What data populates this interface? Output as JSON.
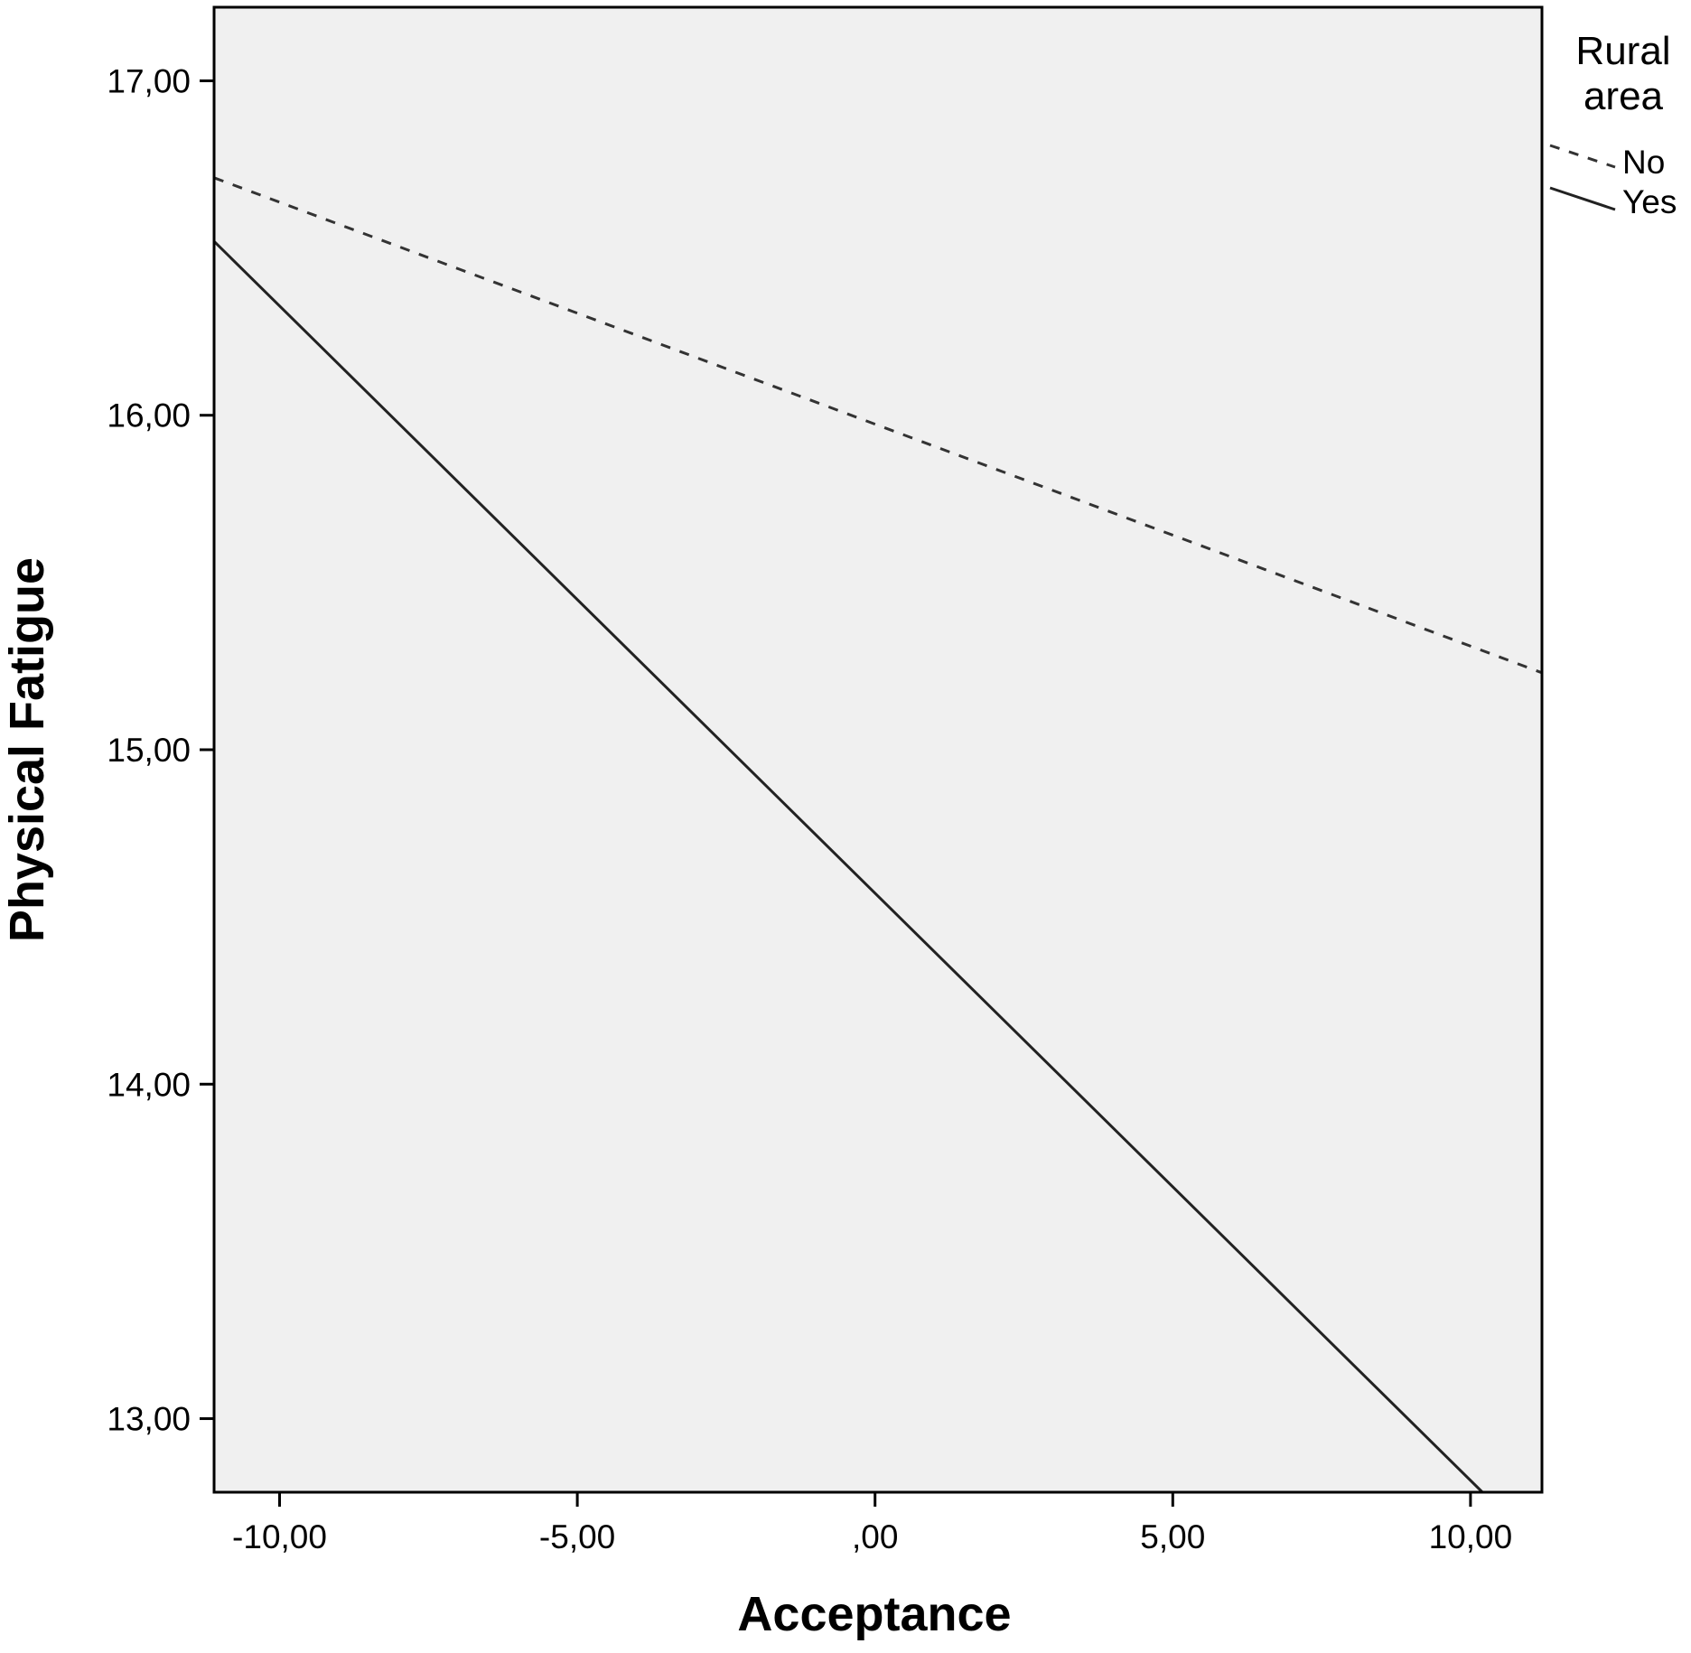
{
  "chart_data": {
    "type": "line",
    "title": "",
    "xlabel": "Acceptance",
    "ylabel": "Physical Fatigue",
    "xlim": [
      -11.1,
      11.2
    ],
    "ylim": [
      12.78,
      17.22
    ],
    "x_ticks": [
      {
        "value": -10,
        "label": "-10,00"
      },
      {
        "value": -5,
        "label": "-5,00"
      },
      {
        "value": 0,
        "label": ",00"
      },
      {
        "value": 5,
        "label": "5,00"
      },
      {
        "value": 10,
        "label": "10,00"
      }
    ],
    "y_ticks": [
      {
        "value": 13,
        "label": "13,00"
      },
      {
        "value": 14,
        "label": "14,00"
      },
      {
        "value": 15,
        "label": "15,00"
      },
      {
        "value": 16,
        "label": "16,00"
      },
      {
        "value": 17,
        "label": "17,00"
      }
    ],
    "grid": false,
    "legend": {
      "title": "Rural area",
      "placement": "top-right"
    },
    "series": [
      {
        "name": "No",
        "style": "dashed",
        "color": "#333333",
        "x": [
          -11.1,
          11.2
        ],
        "y": [
          16.71,
          15.23
        ]
      },
      {
        "name": "Yes",
        "style": "solid",
        "color": "#222222",
        "x": [
          -11.1,
          10.2
        ],
        "y": [
          16.52,
          12.78
        ]
      }
    ],
    "plot_background": "#f0f0f0"
  }
}
